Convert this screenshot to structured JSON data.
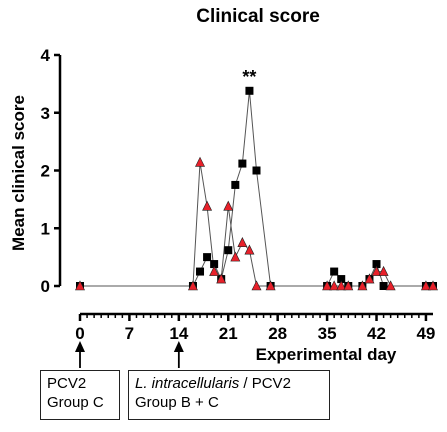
{
  "chart_data": {
    "type": "line",
    "title": "Clinical score",
    "xlabel": "Experimental day",
    "ylabel": "Mean clinical score",
    "xlim": [
      0,
      50
    ],
    "ylim": [
      0,
      4
    ],
    "xticks": [
      0,
      7,
      14,
      21,
      28,
      35,
      42,
      49
    ],
    "yticks": [
      0,
      1,
      2,
      3,
      4
    ],
    "grid": false,
    "annotations": [
      {
        "text": "**",
        "x": 24,
        "y": 3.38
      }
    ],
    "series": [
      {
        "marker": "square",
        "color": "#000000",
        "x": [
          0,
          16,
          17,
          18,
          19,
          20,
          21,
          22,
          23,
          24,
          25,
          27,
          35,
          36,
          37,
          38,
          40,
          41,
          42,
          43,
          49,
          50
        ],
        "y": [
          0,
          0,
          0.25,
          0.5,
          0.38,
          0.12,
          0.62,
          1.75,
          2.12,
          3.38,
          2.0,
          0,
          0,
          0.25,
          0.12,
          0,
          0,
          0.12,
          0.38,
          0,
          0,
          0
        ]
      },
      {
        "marker": "triangle",
        "color": "#e8202a",
        "x": [
          0,
          16,
          17,
          18,
          19,
          20,
          21,
          22,
          23,
          24,
          25,
          27,
          35,
          36,
          37,
          38,
          40,
          41,
          42,
          43,
          44,
          49,
          50
        ],
        "y": [
          0,
          0,
          2.14,
          1.38,
          0.25,
          0.12,
          1.38,
          0.5,
          0.75,
          0.62,
          0,
          0,
          0,
          0,
          0,
          0,
          0,
          0.12,
          0.25,
          0.25,
          0,
          0,
          0
        ]
      }
    ]
  },
  "treatments": {
    "box1": {
      "line1": "PCV2",
      "line2": "Group C",
      "day": 0
    },
    "box2": {
      "line1_italic": "L. intracellularis",
      "line1_rest": " / PCV2",
      "line2": "Group B + C",
      "day": 14
    }
  }
}
